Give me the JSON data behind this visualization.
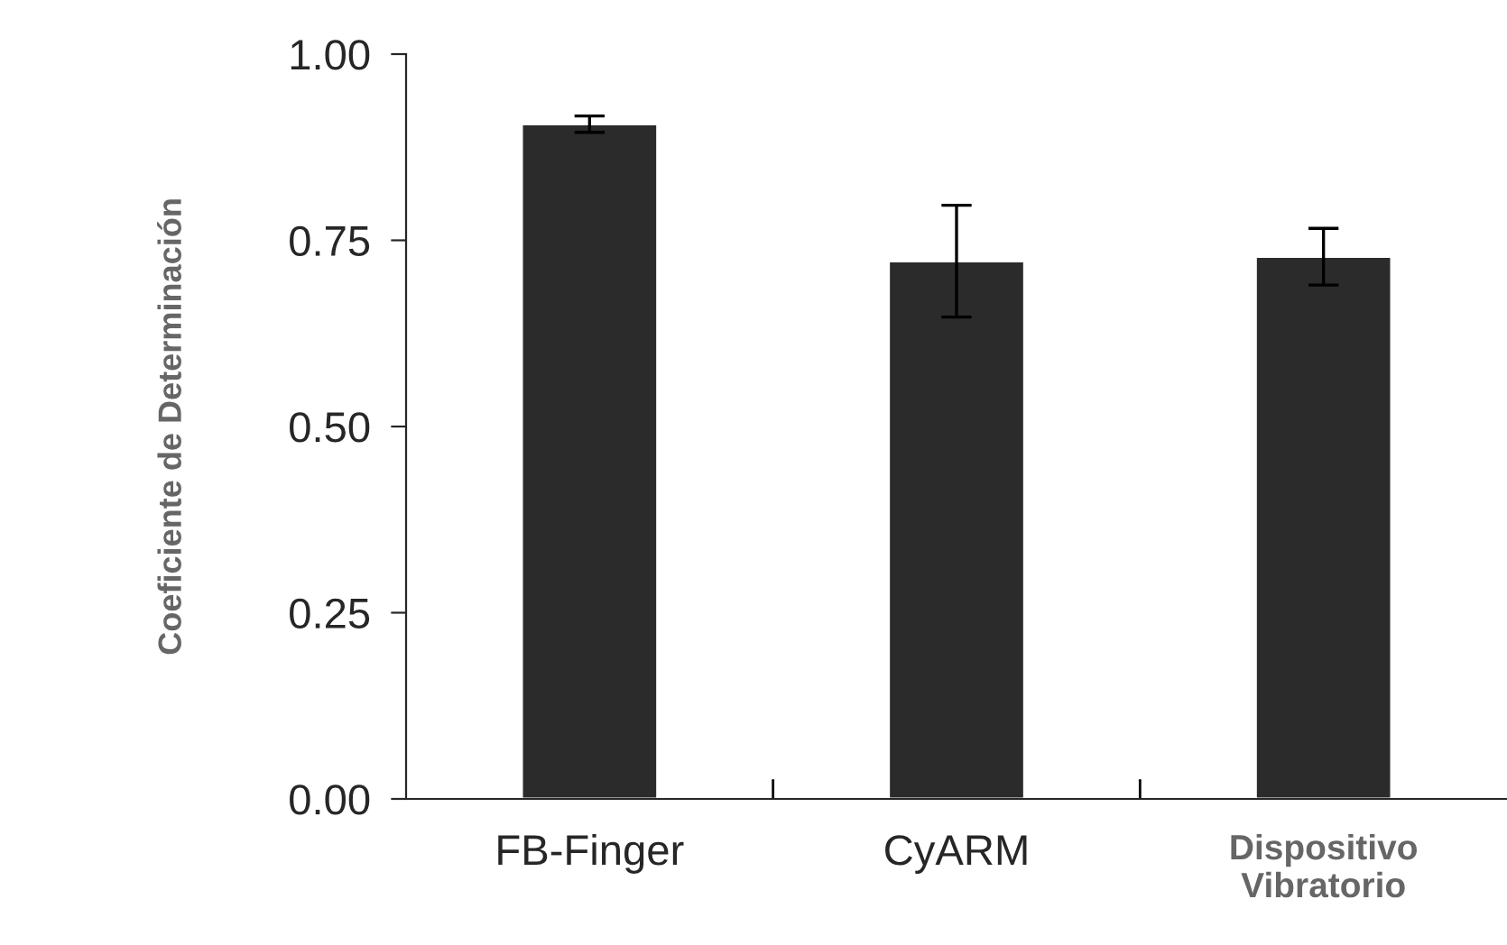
{
  "chart_data": {
    "type": "bar",
    "ylabel": "Coeficiente de Determinación",
    "categories": [
      "FB-Finger",
      "CyARM",
      "Dispositivo\nVibratorio"
    ],
    "values": [
      0.906,
      0.722,
      0.728
    ],
    "errors": [
      0.011,
      0.075,
      0.038
    ],
    "color": "#2b2b2b",
    "ylim": [
      0,
      1
    ],
    "yticks": [
      {
        "value": 0,
        "label": "0.00"
      },
      {
        "value": 0.25,
        "label": "0.25"
      },
      {
        "value": 0.5,
        "label": "0.50"
      },
      {
        "value": 0.75,
        "label": "0.75"
      },
      {
        "value": 1,
        "label": "1.00"
      }
    ],
    "grid": false,
    "legend": false
  }
}
